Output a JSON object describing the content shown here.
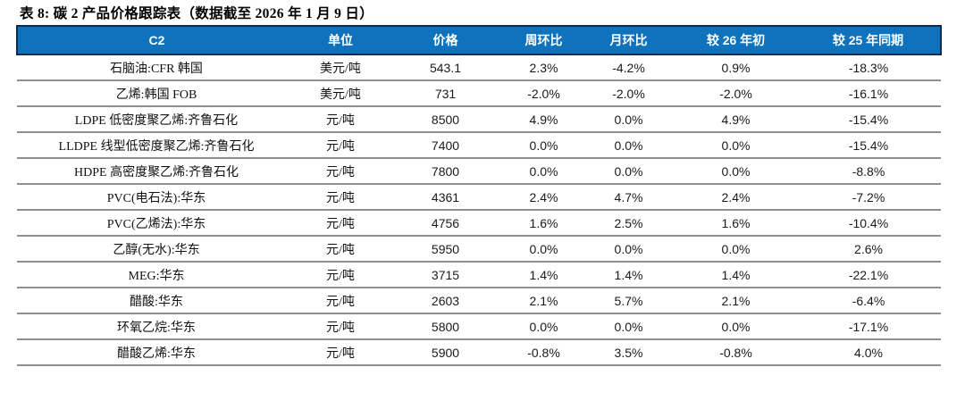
{
  "title": "表 8: 碳 2 产品价格跟踪表（数据截至 2026 年 1 月 9 日）",
  "colors": {
    "header_bg": "#0F72BC",
    "header_border": "#0E2A52",
    "header_text": "#FFFFFF",
    "row_divider": "#8F8F8F",
    "body_text": "#1A1A1A"
  },
  "table": {
    "columns": [
      "C2",
      "单位",
      "价格",
      "周环比",
      "月环比",
      "较 26 年初",
      "较 25 年同期"
    ],
    "rows": [
      {
        "name": "石脑油:CFR 韩国",
        "unit": "美元/吨",
        "price": "543.1",
        "wow": "2.3%",
        "mom": "-4.2%",
        "ytd": "0.9%",
        "yoy": "-18.3%"
      },
      {
        "name": "乙烯:韩国 FOB",
        "unit": "美元/吨",
        "price": "731",
        "wow": "-2.0%",
        "mom": "-2.0%",
        "ytd": "-2.0%",
        "yoy": "-16.1%"
      },
      {
        "name": "LDPE 低密度聚乙烯:齐鲁石化",
        "unit": "元/吨",
        "price": "8500",
        "wow": "4.9%",
        "mom": "0.0%",
        "ytd": "4.9%",
        "yoy": "-15.4%"
      },
      {
        "name": "LLDPE 线型低密度聚乙烯:齐鲁石化",
        "unit": "元/吨",
        "price": "7400",
        "wow": "0.0%",
        "mom": "0.0%",
        "ytd": "0.0%",
        "yoy": "-15.4%"
      },
      {
        "name": "HDPE 高密度聚乙烯:齐鲁石化",
        "unit": "元/吨",
        "price": "7800",
        "wow": "0.0%",
        "mom": "0.0%",
        "ytd": "0.0%",
        "yoy": "-8.8%"
      },
      {
        "name": "PVC(电石法):华东",
        "unit": "元/吨",
        "price": "4361",
        "wow": "2.4%",
        "mom": "4.7%",
        "ytd": "2.4%",
        "yoy": "-7.2%"
      },
      {
        "name": "PVC(乙烯法):华东",
        "unit": "元/吨",
        "price": "4756",
        "wow": "1.6%",
        "mom": "2.5%",
        "ytd": "1.6%",
        "yoy": "-10.4%"
      },
      {
        "name": "乙醇(无水):华东",
        "unit": "元/吨",
        "price": "5950",
        "wow": "0.0%",
        "mom": "0.0%",
        "ytd": "0.0%",
        "yoy": "2.6%"
      },
      {
        "name": "MEG:华东",
        "unit": "元/吨",
        "price": "3715",
        "wow": "1.4%",
        "mom": "1.4%",
        "ytd": "1.4%",
        "yoy": "-22.1%"
      },
      {
        "name": "醋酸:华东",
        "unit": "元/吨",
        "price": "2603",
        "wow": "2.1%",
        "mom": "5.7%",
        "ytd": "2.1%",
        "yoy": "-6.4%"
      },
      {
        "name": "环氧乙烷:华东",
        "unit": "元/吨",
        "price": "5800",
        "wow": "0.0%",
        "mom": "0.0%",
        "ytd": "0.0%",
        "yoy": "-17.1%"
      },
      {
        "name": "醋酸乙烯:华东",
        "unit": "元/吨",
        "price": "5900",
        "wow": "-0.8%",
        "mom": "3.5%",
        "ytd": "-0.8%",
        "yoy": "4.0%"
      }
    ]
  }
}
